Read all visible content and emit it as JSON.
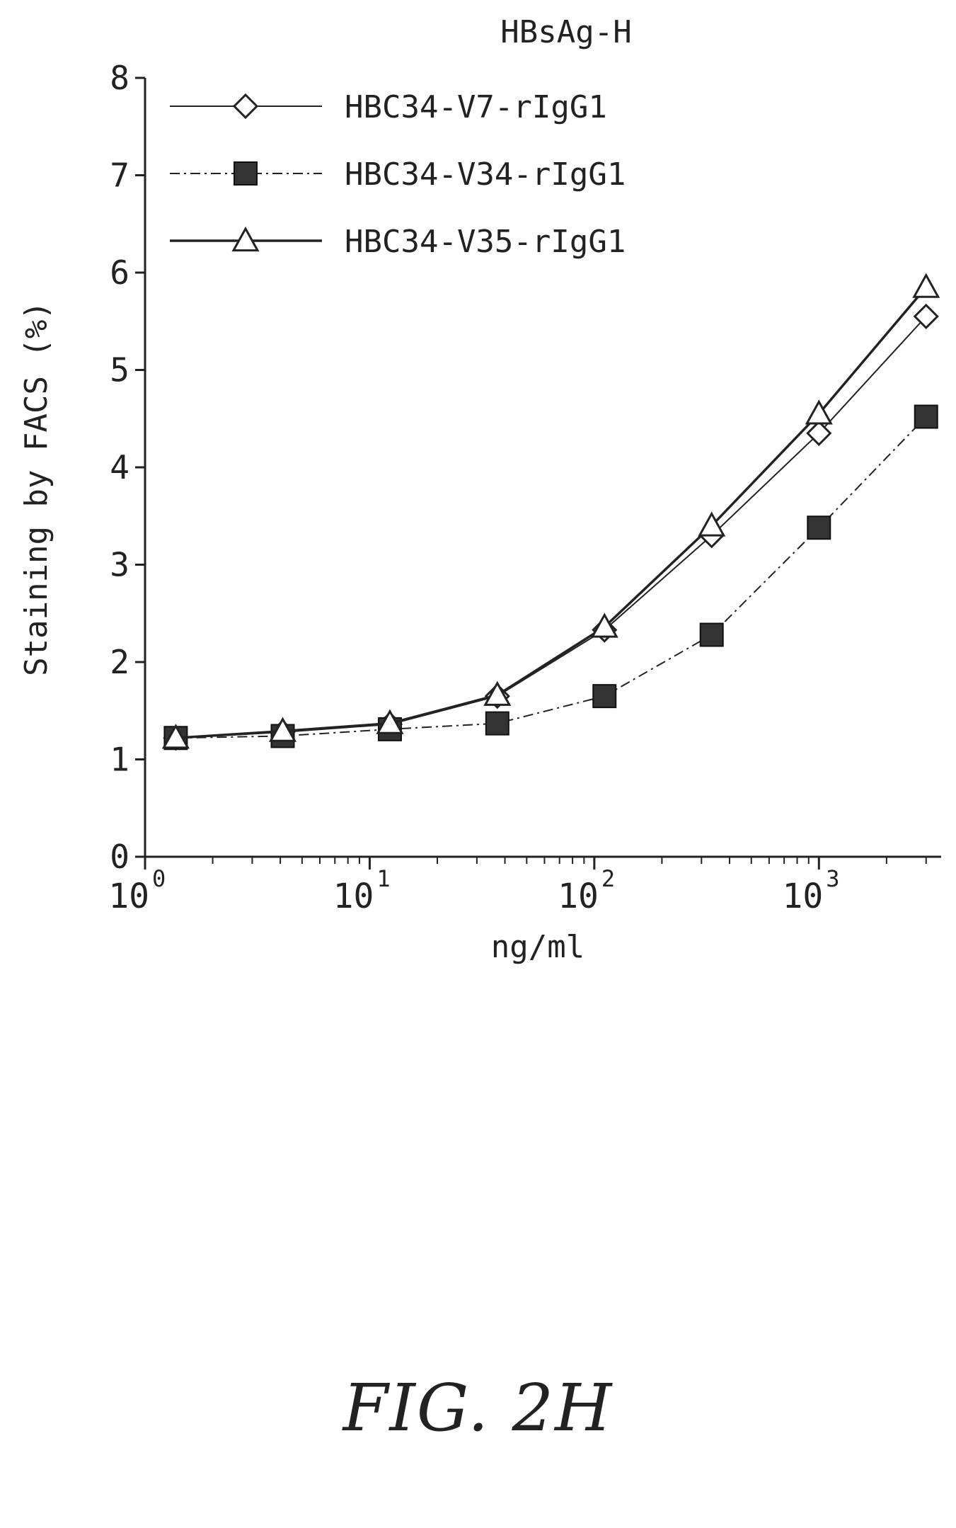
{
  "figure_label": "FIG. 2H",
  "chart_data": {
    "type": "line",
    "title": "HBsAg-H",
    "xlabel": "ng/ml",
    "ylabel": "Staining by FACS (%)",
    "xscale": "log",
    "xlim": [
      1,
      3500
    ],
    "ylim": [
      0,
      8
    ],
    "x_ticks": [
      {
        "value": 1,
        "base": "10",
        "exp": "0"
      },
      {
        "value": 10,
        "base": "10",
        "exp": "1"
      },
      {
        "value": 100,
        "base": "10",
        "exp": "2"
      },
      {
        "value": 1000,
        "base": "10",
        "exp": "3"
      }
    ],
    "y_ticks": [
      "0",
      "1",
      "2",
      "3",
      "4",
      "5",
      "6",
      "7",
      "8"
    ],
    "legend_position": "top-left",
    "x": [
      1.37,
      4.1,
      12.3,
      37,
      111,
      333,
      1000,
      3000
    ],
    "series": [
      {
        "name": "HBC34-V7-rIgG1",
        "marker": "diamond",
        "line": "thin",
        "values": [
          1.22,
          1.28,
          1.36,
          1.65,
          2.33,
          3.3,
          4.35,
          5.55
        ]
      },
      {
        "name": "HBC34-V34-rIgG1",
        "marker": "square",
        "line": "dash-dot",
        "values": [
          1.22,
          1.24,
          1.31,
          1.37,
          1.65,
          2.28,
          3.38,
          4.52
        ]
      },
      {
        "name": "HBC34-V35-rIgG1",
        "marker": "triangle",
        "line": "solid",
        "values": [
          1.22,
          1.29,
          1.37,
          1.66,
          2.36,
          3.4,
          4.55,
          5.85
        ]
      }
    ]
  }
}
